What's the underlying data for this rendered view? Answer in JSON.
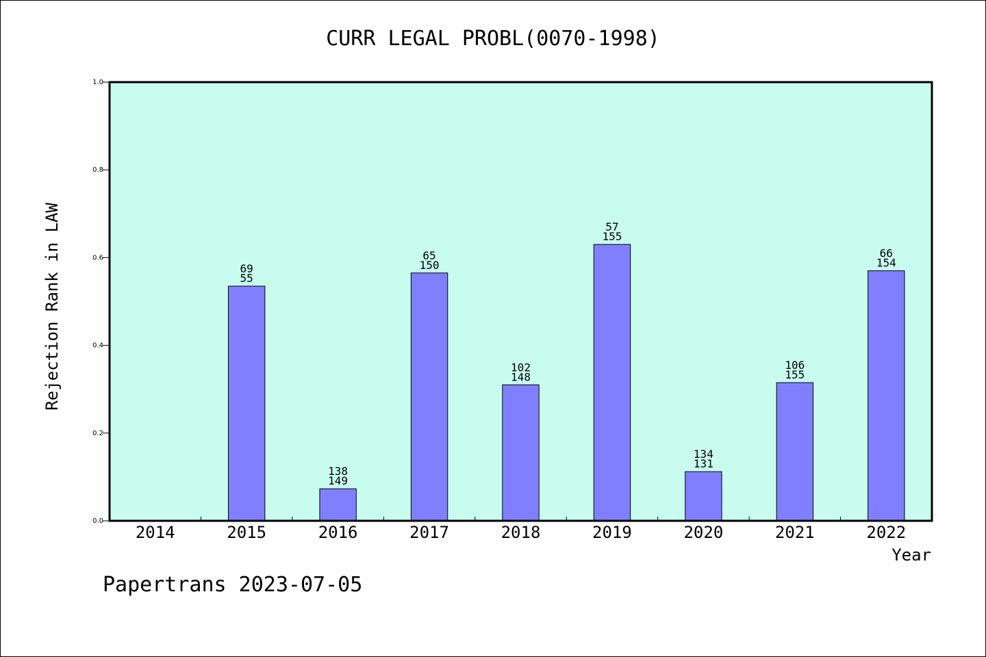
{
  "chart_data": {
    "type": "bar",
    "title": "CURR LEGAL PROBL(0070-1998)",
    "xlabel": "Year",
    "ylabel": "Rejection Rank in LAW",
    "ylim": [
      0,
      1.0
    ],
    "yticks": [
      "0.0",
      "0.2",
      "0.4",
      "0.6",
      "0.8",
      "1.0"
    ],
    "categories": [
      "2014",
      "2015",
      "2016",
      "2017",
      "2018",
      "2019",
      "2020",
      "2021",
      "2022"
    ],
    "values": [
      null,
      0.535,
      0.073,
      0.565,
      0.31,
      0.63,
      0.112,
      0.315,
      0.57
    ],
    "labels_top": [
      "",
      "69",
      "138",
      "65",
      "102",
      "57",
      "134",
      "106",
      "66"
    ],
    "labels_bottom": [
      "",
      "55",
      "149",
      "150",
      "148",
      "155",
      "131",
      "155",
      "154"
    ],
    "plot_bg_color": "#c8fcee",
    "bar_color": "#8080ff",
    "grid": false
  },
  "footer": "Papertrans 2023-07-05"
}
